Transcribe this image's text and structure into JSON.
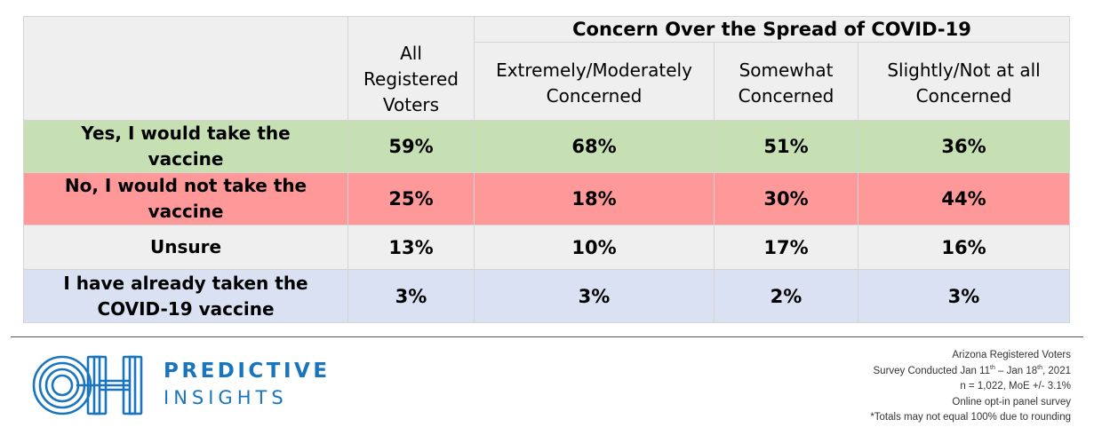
{
  "table": {
    "group_header": "Concern Over the Spread of COVID-19",
    "all_header": [
      "All",
      "Registered",
      "Voters"
    ],
    "sub_headers": [
      {
        "line1": "Extremely/Moderately",
        "line2": "Concerned"
      },
      {
        "line1": "Somewhat",
        "line2": "Concerned"
      },
      {
        "line1": "Slightly/Not at all",
        "line2": "Concerned"
      }
    ],
    "rows": [
      {
        "label1": "Yes, I would take the",
        "label2": "vaccine",
        "values": [
          "59%",
          "68%",
          "51%",
          "36%"
        ],
        "color": "#c6e0b4"
      },
      {
        "label1": "No, I would not take the",
        "label2": "vaccine",
        "values": [
          "25%",
          "18%",
          "30%",
          "44%"
        ],
        "color": "#ff9999"
      },
      {
        "label1": "Unsure",
        "label2": "",
        "values": [
          "13%",
          "10%",
          "17%",
          "16%"
        ],
        "color": "#efefef"
      },
      {
        "label1": "I have already taken the",
        "label2": "COVID-19 vaccine",
        "values": [
          "3%",
          "3%",
          "2%",
          "3%"
        ],
        "color": "#d9e1f2"
      }
    ]
  },
  "branding": {
    "logo_icon": "oh-logo-icon",
    "name_line1": "PREDICTIVE",
    "name_line2": "INSIGHTS",
    "brand_color": "#1a75bc"
  },
  "footnotes": {
    "line1": "Arizona Registered Voters",
    "line2_pre": "Survey Conducted Jan 11",
    "line2_sup1": "th",
    "line2_mid": " – Jan 18",
    "line2_sup2": "th",
    "line2_post": ", 2021",
    "line3": "n = 1,022, MoE +/- 3.1%",
    "line4": "Online opt-in panel survey",
    "line5": "*Totals may not equal 100% due to rounding"
  }
}
